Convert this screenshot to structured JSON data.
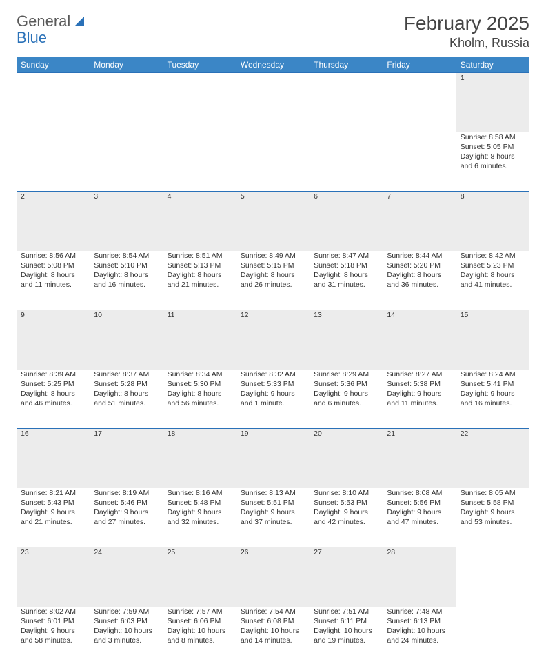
{
  "brand": {
    "general": "General",
    "blue": "Blue"
  },
  "title": "February 2025",
  "location": "Kholm, Russia",
  "weekdays": [
    "Sunday",
    "Monday",
    "Tuesday",
    "Wednesday",
    "Thursday",
    "Friday",
    "Saturday"
  ],
  "colors": {
    "header_bg": "#3b86c6",
    "header_text": "#ffffff",
    "daynum_bg": "#ececec",
    "row_border": "#2a71b8",
    "text": "#333333",
    "background": "#ffffff"
  },
  "typography": {
    "title_fontsize": 28,
    "location_fontsize": 18,
    "weekday_fontsize": 12,
    "cell_fontsize": 10.5
  },
  "weeks": [
    [
      null,
      null,
      null,
      null,
      null,
      null,
      {
        "day": "1",
        "sunrise": "Sunrise: 8:58 AM",
        "sunset": "Sunset: 5:05 PM",
        "daylight1": "Daylight: 8 hours",
        "daylight2": "and 6 minutes."
      }
    ],
    [
      {
        "day": "2",
        "sunrise": "Sunrise: 8:56 AM",
        "sunset": "Sunset: 5:08 PM",
        "daylight1": "Daylight: 8 hours",
        "daylight2": "and 11 minutes."
      },
      {
        "day": "3",
        "sunrise": "Sunrise: 8:54 AM",
        "sunset": "Sunset: 5:10 PM",
        "daylight1": "Daylight: 8 hours",
        "daylight2": "and 16 minutes."
      },
      {
        "day": "4",
        "sunrise": "Sunrise: 8:51 AM",
        "sunset": "Sunset: 5:13 PM",
        "daylight1": "Daylight: 8 hours",
        "daylight2": "and 21 minutes."
      },
      {
        "day": "5",
        "sunrise": "Sunrise: 8:49 AM",
        "sunset": "Sunset: 5:15 PM",
        "daylight1": "Daylight: 8 hours",
        "daylight2": "and 26 minutes."
      },
      {
        "day": "6",
        "sunrise": "Sunrise: 8:47 AM",
        "sunset": "Sunset: 5:18 PM",
        "daylight1": "Daylight: 8 hours",
        "daylight2": "and 31 minutes."
      },
      {
        "day": "7",
        "sunrise": "Sunrise: 8:44 AM",
        "sunset": "Sunset: 5:20 PM",
        "daylight1": "Daylight: 8 hours",
        "daylight2": "and 36 minutes."
      },
      {
        "day": "8",
        "sunrise": "Sunrise: 8:42 AM",
        "sunset": "Sunset: 5:23 PM",
        "daylight1": "Daylight: 8 hours",
        "daylight2": "and 41 minutes."
      }
    ],
    [
      {
        "day": "9",
        "sunrise": "Sunrise: 8:39 AM",
        "sunset": "Sunset: 5:25 PM",
        "daylight1": "Daylight: 8 hours",
        "daylight2": "and 46 minutes."
      },
      {
        "day": "10",
        "sunrise": "Sunrise: 8:37 AM",
        "sunset": "Sunset: 5:28 PM",
        "daylight1": "Daylight: 8 hours",
        "daylight2": "and 51 minutes."
      },
      {
        "day": "11",
        "sunrise": "Sunrise: 8:34 AM",
        "sunset": "Sunset: 5:30 PM",
        "daylight1": "Daylight: 8 hours",
        "daylight2": "and 56 minutes."
      },
      {
        "day": "12",
        "sunrise": "Sunrise: 8:32 AM",
        "sunset": "Sunset: 5:33 PM",
        "daylight1": "Daylight: 9 hours",
        "daylight2": "and 1 minute."
      },
      {
        "day": "13",
        "sunrise": "Sunrise: 8:29 AM",
        "sunset": "Sunset: 5:36 PM",
        "daylight1": "Daylight: 9 hours",
        "daylight2": "and 6 minutes."
      },
      {
        "day": "14",
        "sunrise": "Sunrise: 8:27 AM",
        "sunset": "Sunset: 5:38 PM",
        "daylight1": "Daylight: 9 hours",
        "daylight2": "and 11 minutes."
      },
      {
        "day": "15",
        "sunrise": "Sunrise: 8:24 AM",
        "sunset": "Sunset: 5:41 PM",
        "daylight1": "Daylight: 9 hours",
        "daylight2": "and 16 minutes."
      }
    ],
    [
      {
        "day": "16",
        "sunrise": "Sunrise: 8:21 AM",
        "sunset": "Sunset: 5:43 PM",
        "daylight1": "Daylight: 9 hours",
        "daylight2": "and 21 minutes."
      },
      {
        "day": "17",
        "sunrise": "Sunrise: 8:19 AM",
        "sunset": "Sunset: 5:46 PM",
        "daylight1": "Daylight: 9 hours",
        "daylight2": "and 27 minutes."
      },
      {
        "day": "18",
        "sunrise": "Sunrise: 8:16 AM",
        "sunset": "Sunset: 5:48 PM",
        "daylight1": "Daylight: 9 hours",
        "daylight2": "and 32 minutes."
      },
      {
        "day": "19",
        "sunrise": "Sunrise: 8:13 AM",
        "sunset": "Sunset: 5:51 PM",
        "daylight1": "Daylight: 9 hours",
        "daylight2": "and 37 minutes."
      },
      {
        "day": "20",
        "sunrise": "Sunrise: 8:10 AM",
        "sunset": "Sunset: 5:53 PM",
        "daylight1": "Daylight: 9 hours",
        "daylight2": "and 42 minutes."
      },
      {
        "day": "21",
        "sunrise": "Sunrise: 8:08 AM",
        "sunset": "Sunset: 5:56 PM",
        "daylight1": "Daylight: 9 hours",
        "daylight2": "and 47 minutes."
      },
      {
        "day": "22",
        "sunrise": "Sunrise: 8:05 AM",
        "sunset": "Sunset: 5:58 PM",
        "daylight1": "Daylight: 9 hours",
        "daylight2": "and 53 minutes."
      }
    ],
    [
      {
        "day": "23",
        "sunrise": "Sunrise: 8:02 AM",
        "sunset": "Sunset: 6:01 PM",
        "daylight1": "Daylight: 9 hours",
        "daylight2": "and 58 minutes."
      },
      {
        "day": "24",
        "sunrise": "Sunrise: 7:59 AM",
        "sunset": "Sunset: 6:03 PM",
        "daylight1": "Daylight: 10 hours",
        "daylight2": "and 3 minutes."
      },
      {
        "day": "25",
        "sunrise": "Sunrise: 7:57 AM",
        "sunset": "Sunset: 6:06 PM",
        "daylight1": "Daylight: 10 hours",
        "daylight2": "and 8 minutes."
      },
      {
        "day": "26",
        "sunrise": "Sunrise: 7:54 AM",
        "sunset": "Sunset: 6:08 PM",
        "daylight1": "Daylight: 10 hours",
        "daylight2": "and 14 minutes."
      },
      {
        "day": "27",
        "sunrise": "Sunrise: 7:51 AM",
        "sunset": "Sunset: 6:11 PM",
        "daylight1": "Daylight: 10 hours",
        "daylight2": "and 19 minutes."
      },
      {
        "day": "28",
        "sunrise": "Sunrise: 7:48 AM",
        "sunset": "Sunset: 6:13 PM",
        "daylight1": "Daylight: 10 hours",
        "daylight2": "and 24 minutes."
      },
      null
    ]
  ]
}
